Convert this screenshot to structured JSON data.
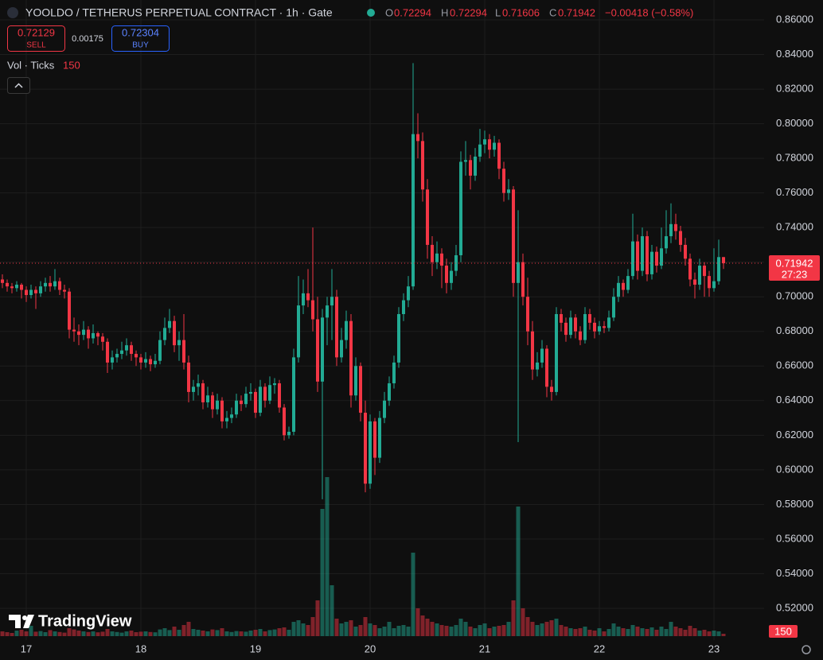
{
  "header": {
    "title": "YOOLDO / TETHERUS PERPETUAL CONTRACT · 1h · Gate",
    "ohlc_labels": [
      "O",
      "H",
      "L",
      "C"
    ],
    "change": "−0.00418 (−0.58%)",
    "sell": {
      "price": "0.72129",
      "label": "SELL"
    },
    "spread": "0.00175",
    "buy": {
      "price": "0.72304",
      "label": "BUY"
    },
    "volume_legend": "Vol · Ticks",
    "countdown": "27:23",
    "brand": "TradingView"
  },
  "chart_data": {
    "type": "candlestick",
    "categories": [
      null,
      null,
      null,
      null,
      null,
      "17",
      null,
      null,
      null,
      null,
      null,
      null,
      null,
      null,
      null,
      null,
      null,
      null,
      null,
      null,
      null,
      null,
      null,
      null,
      null,
      null,
      null,
      null,
      null,
      "18",
      null,
      null,
      null,
      null,
      null,
      null,
      null,
      null,
      null,
      null,
      null,
      null,
      null,
      null,
      null,
      null,
      null,
      null,
      null,
      null,
      null,
      null,
      null,
      "19",
      null,
      null,
      null,
      null,
      null,
      null,
      null,
      null,
      null,
      null,
      null,
      null,
      null,
      null,
      null,
      null,
      null,
      null,
      null,
      null,
      null,
      null,
      null,
      "20",
      null,
      null,
      null,
      null,
      null,
      null,
      null,
      null,
      null,
      null,
      null,
      null,
      null,
      null,
      null,
      null,
      null,
      null,
      null,
      null,
      null,
      null,
      null,
      "21",
      null,
      null,
      null,
      null,
      null,
      null,
      null,
      null,
      null,
      null,
      null,
      null,
      null,
      null,
      null,
      null,
      null,
      null,
      null,
      null,
      null,
      null,
      null,
      "22",
      null,
      null,
      null,
      null,
      null,
      null,
      null,
      null,
      null,
      null,
      null,
      null,
      null,
      null,
      null,
      null,
      null,
      null,
      null,
      null,
      null,
      null,
      null,
      "23",
      null,
      null
    ],
    "candles": [
      [
        0.71,
        0.713,
        0.705,
        0.708
      ],
      [
        0.708,
        0.71,
        0.703,
        0.706
      ],
      [
        0.706,
        0.708,
        0.702,
        0.705
      ],
      [
        0.705,
        0.709,
        0.703,
        0.707
      ],
      [
        0.707,
        0.708,
        0.699,
        0.704
      ],
      [
        0.704,
        0.706,
        0.697,
        0.701
      ],
      [
        0.701,
        0.707,
        0.699,
        0.704
      ],
      [
        0.704,
        0.706,
        0.693,
        0.702
      ],
      [
        0.702,
        0.709,
        0.7,
        0.706
      ],
      [
        0.706,
        0.711,
        0.703,
        0.708
      ],
      [
        0.708,
        0.712,
        0.703,
        0.706
      ],
      [
        0.706,
        0.716,
        0.704,
        0.709
      ],
      [
        0.709,
        0.711,
        0.701,
        0.704
      ],
      [
        0.704,
        0.707,
        0.699,
        0.703
      ],
      [
        0.703,
        0.705,
        0.676,
        0.681
      ],
      [
        0.681,
        0.688,
        0.674,
        0.68
      ],
      [
        0.68,
        0.684,
        0.672,
        0.678
      ],
      [
        0.678,
        0.686,
        0.675,
        0.681
      ],
      [
        0.681,
        0.683,
        0.67,
        0.676
      ],
      [
        0.676,
        0.684,
        0.673,
        0.679
      ],
      [
        0.679,
        0.68,
        0.672,
        0.677
      ],
      [
        0.677,
        0.679,
        0.669,
        0.674
      ],
      [
        0.674,
        0.676,
        0.656,
        0.662
      ],
      [
        0.662,
        0.669,
        0.658,
        0.665
      ],
      [
        0.665,
        0.67,
        0.662,
        0.667
      ],
      [
        0.667,
        0.674,
        0.664,
        0.669
      ],
      [
        0.669,
        0.676,
        0.666,
        0.672
      ],
      [
        0.672,
        0.674,
        0.663,
        0.667
      ],
      [
        0.667,
        0.669,
        0.66,
        0.665
      ],
      [
        0.665,
        0.667,
        0.658,
        0.662
      ],
      [
        0.662,
        0.668,
        0.659,
        0.664
      ],
      [
        0.664,
        0.666,
        0.657,
        0.661
      ],
      [
        0.661,
        0.667,
        0.659,
        0.663
      ],
      [
        0.663,
        0.68,
        0.661,
        0.675
      ],
      [
        0.675,
        0.688,
        0.672,
        0.682
      ],
      [
        0.682,
        0.693,
        0.679,
        0.686
      ],
      [
        0.686,
        0.689,
        0.668,
        0.672
      ],
      [
        0.672,
        0.68,
        0.663,
        0.675
      ],
      [
        0.675,
        0.69,
        0.658,
        0.662
      ],
      [
        0.662,
        0.666,
        0.639,
        0.645
      ],
      [
        0.645,
        0.652,
        0.64,
        0.648
      ],
      [
        0.648,
        0.655,
        0.643,
        0.65
      ],
      [
        0.65,
        0.652,
        0.635,
        0.639
      ],
      [
        0.639,
        0.648,
        0.636,
        0.643
      ],
      [
        0.643,
        0.645,
        0.63,
        0.635
      ],
      [
        0.635,
        0.644,
        0.632,
        0.64
      ],
      [
        0.64,
        0.642,
        0.624,
        0.628
      ],
      [
        0.628,
        0.634,
        0.624,
        0.63
      ],
      [
        0.63,
        0.636,
        0.627,
        0.632
      ],
      [
        0.632,
        0.644,
        0.63,
        0.64
      ],
      [
        0.64,
        0.643,
        0.634,
        0.638
      ],
      [
        0.638,
        0.648,
        0.636,
        0.644
      ],
      [
        0.644,
        0.65,
        0.64,
        0.645
      ],
      [
        0.645,
        0.647,
        0.63,
        0.633
      ],
      [
        0.633,
        0.652,
        0.631,
        0.648
      ],
      [
        0.648,
        0.65,
        0.636,
        0.64
      ],
      [
        0.64,
        0.654,
        0.638,
        0.649
      ],
      [
        0.649,
        0.653,
        0.644,
        0.65
      ],
      [
        0.65,
        0.652,
        0.633,
        0.636
      ],
      [
        0.636,
        0.638,
        0.617,
        0.62
      ],
      [
        0.62,
        0.625,
        0.618,
        0.622
      ],
      [
        0.622,
        0.67,
        0.62,
        0.665
      ],
      [
        0.665,
        0.712,
        0.662,
        0.695
      ],
      [
        0.695,
        0.71,
        0.69,
        0.702
      ],
      [
        0.702,
        0.716,
        0.694,
        0.698
      ],
      [
        0.698,
        0.74,
        0.68,
        0.687
      ],
      [
        0.687,
        0.7,
        0.645,
        0.651
      ],
      [
        0.651,
        0.693,
        0.583,
        0.688
      ],
      [
        0.688,
        0.7,
        0.672,
        0.695
      ],
      [
        0.695,
        0.716,
        0.675,
        0.7
      ],
      [
        0.7,
        0.704,
        0.66,
        0.665
      ],
      [
        0.665,
        0.682,
        0.662,
        0.675
      ],
      [
        0.675,
        0.692,
        0.67,
        0.686
      ],
      [
        0.686,
        0.69,
        0.636,
        0.643
      ],
      [
        0.643,
        0.665,
        0.64,
        0.66
      ],
      [
        0.66,
        0.662,
        0.628,
        0.633
      ],
      [
        0.633,
        0.64,
        0.587,
        0.592
      ],
      [
        0.592,
        0.632,
        0.589,
        0.628
      ],
      [
        0.628,
        0.63,
        0.597,
        0.607
      ],
      [
        0.607,
        0.634,
        0.604,
        0.63
      ],
      [
        0.63,
        0.645,
        0.627,
        0.64
      ],
      [
        0.64,
        0.654,
        0.637,
        0.65
      ],
      [
        0.65,
        0.666,
        0.647,
        0.662
      ],
      [
        0.662,
        0.694,
        0.659,
        0.69
      ],
      [
        0.69,
        0.702,
        0.686,
        0.698
      ],
      [
        0.698,
        0.712,
        0.694,
        0.706
      ],
      [
        0.706,
        0.835,
        0.704,
        0.794
      ],
      [
        0.794,
        0.806,
        0.78,
        0.79
      ],
      [
        0.79,
        0.795,
        0.755,
        0.762
      ],
      [
        0.762,
        0.768,
        0.722,
        0.73
      ],
      [
        0.73,
        0.735,
        0.712,
        0.72
      ],
      [
        0.72,
        0.732,
        0.716,
        0.725
      ],
      [
        0.725,
        0.728,
        0.705,
        0.718
      ],
      [
        0.718,
        0.722,
        0.702,
        0.708
      ],
      [
        0.708,
        0.72,
        0.704,
        0.715
      ],
      [
        0.715,
        0.73,
        0.712,
        0.724
      ],
      [
        0.724,
        0.784,
        0.72,
        0.778
      ],
      [
        0.778,
        0.79,
        0.77,
        0.779
      ],
      [
        0.779,
        0.782,
        0.762,
        0.77
      ],
      [
        0.77,
        0.786,
        0.767,
        0.781
      ],
      [
        0.781,
        0.797,
        0.778,
        0.788
      ],
      [
        0.788,
        0.796,
        0.783,
        0.791
      ],
      [
        0.791,
        0.794,
        0.78,
        0.785
      ],
      [
        0.785,
        0.793,
        0.781,
        0.789
      ],
      [
        0.789,
        0.791,
        0.768,
        0.774
      ],
      [
        0.774,
        0.778,
        0.755,
        0.76
      ],
      [
        0.76,
        0.768,
        0.756,
        0.762
      ],
      [
        0.762,
        0.764,
        0.7,
        0.708
      ],
      [
        0.708,
        0.75,
        0.616,
        0.72
      ],
      [
        0.72,
        0.725,
        0.695,
        0.7
      ],
      [
        0.7,
        0.711,
        0.672,
        0.68
      ],
      [
        0.68,
        0.686,
        0.652,
        0.658
      ],
      [
        0.658,
        0.668,
        0.654,
        0.662
      ],
      [
        0.662,
        0.675,
        0.659,
        0.67
      ],
      [
        0.67,
        0.672,
        0.642,
        0.648
      ],
      [
        0.648,
        0.652,
        0.64,
        0.645
      ],
      [
        0.645,
        0.694,
        0.643,
        0.69
      ],
      [
        0.69,
        0.693,
        0.68,
        0.685
      ],
      [
        0.685,
        0.688,
        0.674,
        0.678
      ],
      [
        0.678,
        0.692,
        0.676,
        0.688
      ],
      [
        0.688,
        0.69,
        0.676,
        0.68
      ],
      [
        0.68,
        0.683,
        0.672,
        0.675
      ],
      [
        0.675,
        0.694,
        0.673,
        0.69
      ],
      [
        0.69,
        0.693,
        0.681,
        0.685
      ],
      [
        0.685,
        0.688,
        0.676,
        0.68
      ],
      [
        0.68,
        0.686,
        0.678,
        0.683
      ],
      [
        0.683,
        0.686,
        0.679,
        0.682
      ],
      [
        0.682,
        0.692,
        0.68,
        0.688
      ],
      [
        0.688,
        0.705,
        0.686,
        0.7
      ],
      [
        0.7,
        0.712,
        0.697,
        0.708
      ],
      [
        0.708,
        0.71,
        0.7,
        0.704
      ],
      [
        0.704,
        0.716,
        0.702,
        0.712
      ],
      [
        0.712,
        0.748,
        0.71,
        0.732
      ],
      [
        0.732,
        0.736,
        0.71,
        0.715
      ],
      [
        0.715,
        0.74,
        0.712,
        0.735
      ],
      [
        0.735,
        0.738,
        0.709,
        0.713
      ],
      [
        0.713,
        0.73,
        0.71,
        0.726
      ],
      [
        0.726,
        0.729,
        0.714,
        0.718
      ],
      [
        0.718,
        0.74,
        0.716,
        0.728
      ],
      [
        0.728,
        0.75,
        0.725,
        0.735
      ],
      [
        0.735,
        0.754,
        0.731,
        0.742
      ],
      [
        0.742,
        0.748,
        0.733,
        0.738
      ],
      [
        0.738,
        0.741,
        0.726,
        0.73
      ],
      [
        0.73,
        0.734,
        0.718,
        0.722
      ],
      [
        0.722,
        0.725,
        0.706,
        0.71
      ],
      [
        0.71,
        0.714,
        0.699,
        0.707
      ],
      [
        0.707,
        0.722,
        0.704,
        0.718
      ],
      [
        0.718,
        0.72,
        0.7,
        0.712
      ],
      [
        0.712,
        0.715,
        0.7,
        0.705
      ],
      [
        0.705,
        0.728,
        0.703,
        0.709
      ],
      [
        0.709,
        0.733,
        0.707,
        0.72294
      ],
      [
        0.72294,
        0.72294,
        0.71606,
        0.71942
      ]
    ],
    "volume": [
      300,
      250,
      200,
      350,
      400,
      300,
      650,
      280,
      320,
      250,
      380,
      300,
      260,
      220,
      500,
      420,
      350,
      300,
      260,
      300,
      240,
      280,
      450,
      300,
      260,
      220,
      300,
      350,
      250,
      280,
      300,
      260,
      240,
      420,
      500,
      380,
      600,
      400,
      700,
      900,
      450,
      400,
      350,
      300,
      420,
      380,
      500,
      300,
      260,
      320,
      300,
      280,
      350,
      400,
      450,
      300,
      380,
      420,
      500,
      550,
      400,
      900,
      1000,
      800,
      700,
      1200,
      2250,
      8000,
      10000,
      3200,
      1100,
      800,
      900,
      1000,
      600,
      700,
      1200,
      800,
      700,
      500,
      600,
      900,
      500,
      650,
      700,
      600,
      5250,
      1750,
      1300,
      1100,
      900,
      800,
      700,
      650,
      600,
      700,
      1100,
      900,
      600,
      500,
      700,
      800,
      500,
      600,
      650,
      700,
      900,
      2250,
      8150,
      1750,
      1200,
      900,
      700,
      800,
      900,
      1000,
      1100,
      700,
      600,
      500,
      450,
      500,
      600,
      400,
      350,
      500,
      300,
      450,
      800,
      600,
      500,
      450,
      700,
      600,
      500,
      450,
      550,
      400,
      600,
      450,
      900,
      600,
      500,
      400,
      650,
      500,
      350,
      400,
      300,
      350,
      300,
      150
    ],
    "up_color": "#22ab94",
    "down_color": "#f23645",
    "ylim": [
      0.5016,
      0.8715
    ],
    "yticks": [
      {
        "value": 0.52,
        "label": "0.52000"
      },
      {
        "value": 0.54,
        "label": "0.54000"
      },
      {
        "value": 0.56,
        "label": "0.56000"
      },
      {
        "value": 0.58,
        "label": "0.58000"
      },
      {
        "value": 0.6,
        "label": "0.60000"
      },
      {
        "value": 0.62,
        "label": "0.62000"
      },
      {
        "value": 0.64,
        "label": "0.64000"
      },
      {
        "value": 0.66,
        "label": "0.66000"
      },
      {
        "value": 0.68,
        "label": "0.68000"
      },
      {
        "value": 0.7,
        "label": "0.70000"
      },
      {
        "value": 0.72,
        "label": "0.72000"
      },
      {
        "value": 0.74,
        "label": "0.74000"
      },
      {
        "value": 0.76,
        "label": "0.76000"
      },
      {
        "value": 0.78,
        "label": "0.78000"
      },
      {
        "value": 0.8,
        "label": "0.80000"
      },
      {
        "value": 0.82,
        "label": "0.82000"
      },
      {
        "value": 0.84,
        "label": "0.84000"
      },
      {
        "value": 0.86,
        "label": "0.86000"
      }
    ],
    "volume_ylim": [
      0,
      12000
    ],
    "grid": true
  }
}
